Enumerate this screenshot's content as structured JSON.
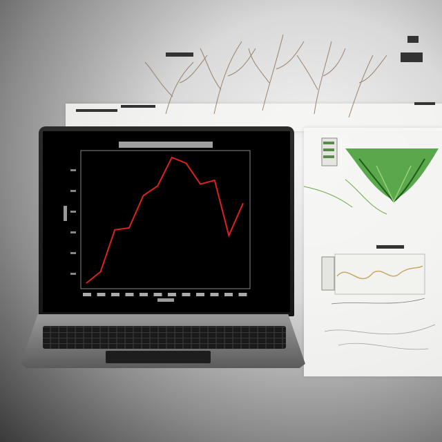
{
  "scene": {
    "description_free": true
  },
  "screen_chart": {
    "series_color": "#e02020",
    "values": [
      0,
      6,
      28,
      29,
      46,
      51,
      66,
      63,
      52,
      54,
      25,
      42
    ]
  },
  "colors": {
    "plant_green": "#3e9a2e",
    "paper_line": "#c9a86a",
    "screen_bg": "#000000"
  }
}
